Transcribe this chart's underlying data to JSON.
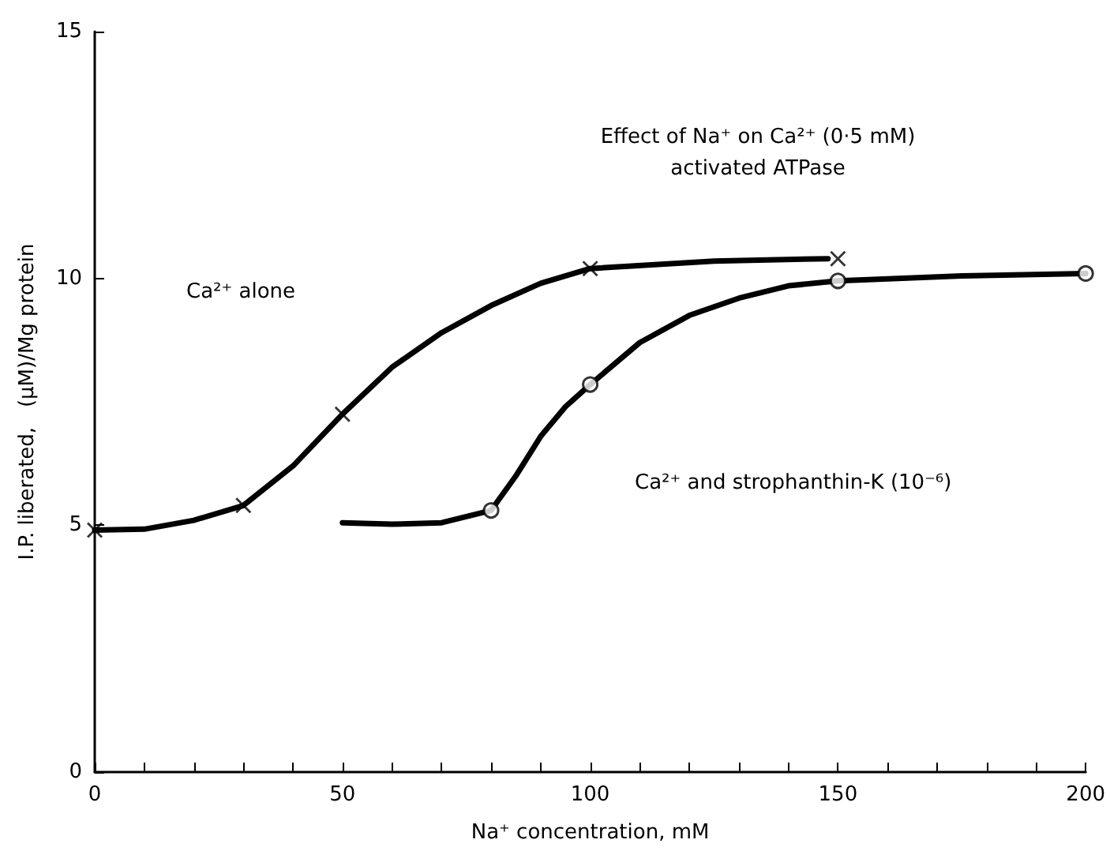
{
  "chart_data": {
    "type": "line",
    "title": "Effect of Na⁺ on Ca²⁺ (0·5 mM)\nactivated ATPase",
    "xlabel": "Na⁺ concentration, mM",
    "ylabel": "I.P. liberated,   (μM)/Mg protein",
    "series": [
      {
        "color": "#000000",
        "marker": "none",
        "line_style": "solid",
        "x": [
          0,
          10,
          20,
          30,
          40,
          50,
          60,
          70,
          80,
          90,
          100,
          125,
          148
        ],
        "values": [
          4.9,
          4.92,
          5.1,
          5.4,
          6.2,
          7.25,
          8.2,
          8.9,
          9.45,
          9.9,
          10.2,
          10.35,
          10.4
        ]
      },
      {
        "type": "scatter",
        "color": "#000000",
        "marker": "cross",
        "x": [
          0,
          30,
          50,
          100,
          150
        ],
        "values": [
          4.9,
          5.4,
          7.25,
          10.2,
          10.4
        ]
      },
      {
        "color": "#000000",
        "marker": "none",
        "line_style": "solid",
        "x": [
          50,
          60,
          70,
          80,
          85,
          90,
          95,
          100,
          110,
          120,
          130,
          140,
          150,
          175,
          200
        ],
        "values": [
          5.05,
          5.02,
          5.05,
          5.3,
          6.0,
          6.8,
          7.4,
          7.85,
          8.7,
          9.25,
          9.6,
          9.85,
          9.95,
          10.05,
          10.1
        ]
      },
      {
        "type": "scatter",
        "color": "#000000",
        "marker": "circle",
        "x": [
          80,
          100,
          150,
          200
        ],
        "values": [
          5.3,
          7.85,
          9.95,
          10.1
        ]
      }
    ],
    "xlim": [
      0,
      200
    ],
    "ylim": [
      0,
      15
    ],
    "xticks": [
      0,
      {
        "value": 10,
        "label": null
      },
      {
        "value": 20,
        "label": null
      },
      {
        "value": 30,
        "label": null
      },
      {
        "value": 40,
        "label": null
      },
      50,
      {
        "value": 60,
        "label": null
      },
      {
        "value": 70,
        "label": null
      },
      {
        "value": 80,
        "label": null
      },
      {
        "value": 90,
        "label": null
      },
      100,
      {
        "value": 110,
        "label": null
      },
      {
        "value": 120,
        "label": null
      },
      {
        "value": 130,
        "label": null
      },
      {
        "value": 140,
        "label": null
      },
      150,
      {
        "value": 160,
        "label": null
      },
      {
        "value": 170,
        "label": null
      },
      {
        "value": 180,
        "label": null
      },
      {
        "value": 190,
        "label": null
      },
      200
    ],
    "yticks": [
      0,
      5,
      10,
      15
    ],
    "annotations": [
      "Ca²⁺ alone",
      "Ca²⁺ and strophanthin-K (10⁻⁶)"
    ],
    "grid": false
  }
}
